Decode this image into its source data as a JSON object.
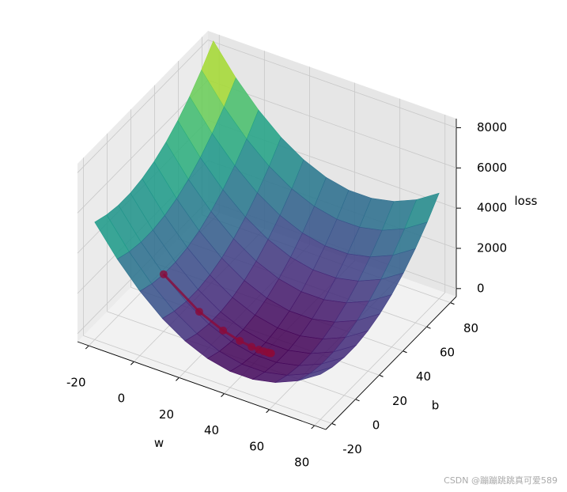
{
  "chart_data": {
    "type": "surface3d",
    "xlabel": "w",
    "ylabel": "b",
    "zlabel": "loss",
    "xlim": [
      -25,
      85
    ],
    "ylim": [
      -25,
      85
    ],
    "zlim": [
      -400,
      8450
    ],
    "xticks": [
      -20,
      0,
      20,
      40,
      60,
      80
    ],
    "yticks": [
      -20,
      0,
      20,
      40,
      60,
      80
    ],
    "zticks": [
      0,
      2000,
      4000,
      6000,
      8000
    ],
    "grid": true,
    "colormap": "viridis",
    "surface": {
      "w": [
        -20,
        -10,
        0,
        10,
        20,
        30,
        40,
        50,
        60,
        70,
        80
      ],
      "b": [
        -20,
        -10,
        0,
        10,
        20,
        30,
        40,
        50,
        60,
        70,
        80
      ],
      "z": [
        [
          5445,
          5205,
          5085,
          5085,
          5205,
          5445,
          5805,
          6285,
          6885,
          7605,
          8445
        ],
        [
          4005,
          3765,
          3645,
          3645,
          3765,
          4005,
          4365,
          4845,
          5445,
          6165,
          7005
        ],
        [
          2805,
          2565,
          2445,
          2445,
          2565,
          2805,
          3165,
          3645,
          4245,
          4965,
          5805
        ],
        [
          1845,
          1605,
          1485,
          1485,
          1605,
          1845,
          2205,
          2685,
          3285,
          4005,
          4845
        ],
        [
          1125,
          885,
          765,
          765,
          885,
          1125,
          1485,
          1965,
          2565,
          3285,
          4125
        ],
        [
          645,
          405,
          285,
          285,
          405,
          645,
          1005,
          1485,
          2085,
          2805,
          3645
        ],
        [
          405,
          165,
          45,
          45,
          165,
          405,
          765,
          1245,
          1845,
          2565,
          3405
        ],
        [
          405,
          165,
          45,
          45,
          165,
          405,
          765,
          1245,
          1845,
          2565,
          3405
        ],
        [
          645,
          405,
          285,
          285,
          405,
          645,
          1005,
          1485,
          2085,
          2805,
          3645
        ],
        [
          1125,
          885,
          765,
          765,
          885,
          1125,
          1485,
          1965,
          2565,
          3285,
          4125
        ],
        [
          1845,
          1605,
          1485,
          1485,
          1605,
          1845,
          2205,
          2685,
          3285,
          4005,
          4845
        ]
      ]
    },
    "path": {
      "color": "#8b0a3a",
      "w": [
        0,
        15,
        25,
        32,
        37,
        40,
        42,
        43.5,
        44.3,
        44.7,
        45
      ],
      "b": [
        0,
        1.5,
        2.6,
        3.3,
        3.8,
        4.2,
        4.5,
        4.7,
        4.8,
        4.9,
        5
      ],
      "loss": [
        2445,
        1087,
        484,
        205,
        78,
        30,
        11,
        3,
        1,
        0,
        0
      ]
    }
  },
  "watermark": "CSDN @蹦蹦跳跳真可爱589"
}
